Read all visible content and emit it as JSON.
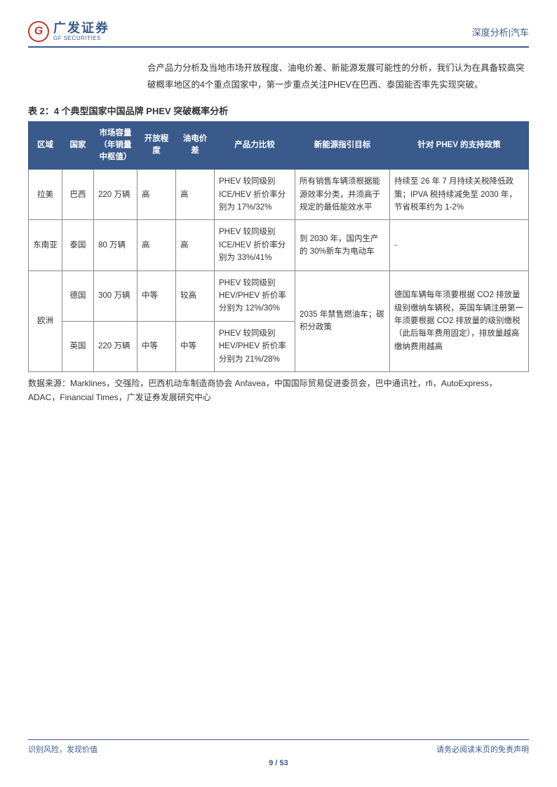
{
  "header": {
    "logo_cn": "广发证券",
    "logo_en": "GF SECURITIES",
    "logo_letter": "G",
    "right": "深度分析|汽车"
  },
  "body_text": "合产品力分析及当地市场开放程度、油电价差、新能源发展可能性的分析，我们认为在具备较高突破概率地区的4个重点国家中，第一步重点关注PHEV在巴西、泰国能否率先实现突破。",
  "table": {
    "title": "表 2：4 个典型国家中国品牌 PHEV 突破概率分析",
    "headers": {
      "region": "区域",
      "country": "国家",
      "capacity": "市场容量（年销量中枢值）",
      "openness": "开放程度",
      "pricediff": "油电价差",
      "product": "产品力比较",
      "target": "新能源指引目标",
      "policy": "针对 PHEV 的支持政策"
    },
    "rows": {
      "r1": {
        "region": "拉美",
        "country": "巴西",
        "capacity": "220 万辆",
        "openness": "高",
        "pricediff": "高",
        "product": "PHEV 较同级别 ICE/HEV 折价率分别为 17%/32%",
        "target": "所有销售车辆须根据能源效率分类，并须高于规定的最低能效水平",
        "policy": "持续至 26 年 7 月持续关税降低政策；IPVA 税持续减免至 2030 年，节省税率约为 1-2%"
      },
      "r2": {
        "region": "东南亚",
        "country": "泰国",
        "capacity": "80 万辆",
        "openness": "高",
        "pricediff": "高",
        "product": "PHEV 较同级别 ICE/HEV 折价率分别为 33%/41%",
        "target": "到 2030 年，国内生产的 30%新车为电动车",
        "policy": "-"
      },
      "r3_region": "欧洲",
      "r3": {
        "country": "德国",
        "capacity": "300 万辆",
        "openness": "中等",
        "pricediff": "较高",
        "product": "PHEV 较同级别 HEV/PHEV 折价率分别为 12%/30%"
      },
      "r3_target": "2035 年禁售燃油车；碳积分政策",
      "r3_policy": "德国车辆每年须要根据 CO2 排放量级别缴纳车辆税，英国车辆注册第一年须要根据 CO2 排放量的级别缴税（此后每年费用固定），排放量越高缴纳费用越高",
      "r4": {
        "country": "英国",
        "capacity": "220 万辆",
        "openness": "中等",
        "pricediff": "中等",
        "product": "PHEV 较同级别 HEV/PHEV 折价率分别为 21%/28%"
      }
    },
    "source": "数据来源：Marklines，交强险，巴西机动车制造商协会 Anfavea，中国国际贸易促进委员会，巴中通讯社，rfi，AutoExpress，ADAC，Financial Times，广发证券发展研究中心"
  },
  "footer": {
    "left": "识别风险，发现价值",
    "right": "请务必阅读末页的免责声明",
    "page_current": "9",
    "page_sep": " / ",
    "page_total": "53"
  }
}
